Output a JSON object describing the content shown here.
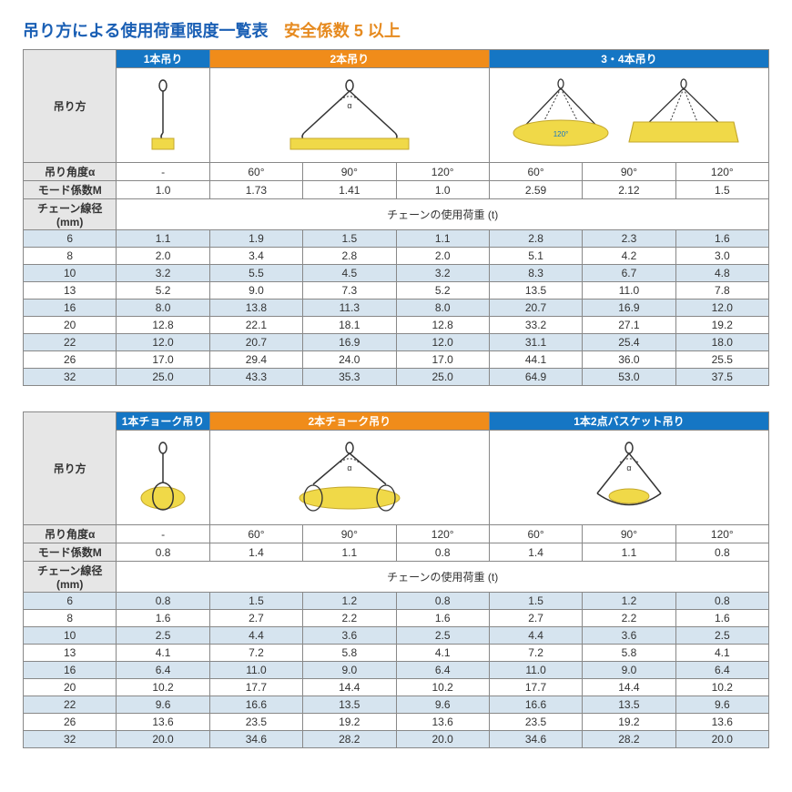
{
  "title_main": "吊り方による使用荷重限度一覧表",
  "title_sub": "安全係数 5 以上",
  "colors": {
    "blue": "#1576c4",
    "orange": "#f08c1a",
    "grey": "#e6e6e6",
    "altrow": "#d6e4ef",
    "title_blue": "#1a5fb4",
    "title_orange": "#e68a1f",
    "border": "#888888"
  },
  "labels": {
    "sling_method": "吊り方",
    "angle": "吊り角度α",
    "mode": "モード係数M",
    "chain_dia": "チェーン線径 (mm)",
    "chain_load": "チェーンの使用荷重 (t)"
  },
  "table1": {
    "headers": [
      {
        "text": "1本吊り",
        "color": "blue",
        "span": 1
      },
      {
        "text": "2本吊り",
        "color": "orange",
        "span": 3
      },
      {
        "text": "3・4本吊り",
        "color": "blue",
        "span": 3
      }
    ],
    "angles": [
      "-",
      "60°",
      "90°",
      "120°",
      "60°",
      "90°",
      "120°"
    ],
    "modes": [
      "1.0",
      "1.73",
      "1.41",
      "1.0",
      "2.59",
      "2.12",
      "1.5"
    ],
    "rows": [
      {
        "dia": "6",
        "v": [
          "1.1",
          "1.9",
          "1.5",
          "1.1",
          "2.8",
          "2.3",
          "1.6"
        ],
        "alt": true
      },
      {
        "dia": "8",
        "v": [
          "2.0",
          "3.4",
          "2.8",
          "2.0",
          "5.1",
          "4.2",
          "3.0"
        ],
        "alt": false
      },
      {
        "dia": "10",
        "v": [
          "3.2",
          "5.5",
          "4.5",
          "3.2",
          "8.3",
          "6.7",
          "4.8"
        ],
        "alt": true
      },
      {
        "dia": "13",
        "v": [
          "5.2",
          "9.0",
          "7.3",
          "5.2",
          "13.5",
          "11.0",
          "7.8"
        ],
        "alt": false
      },
      {
        "dia": "16",
        "v": [
          "8.0",
          "13.8",
          "11.3",
          "8.0",
          "20.7",
          "16.9",
          "12.0"
        ],
        "alt": true
      },
      {
        "dia": "20",
        "v": [
          "12.8",
          "22.1",
          "18.1",
          "12.8",
          "33.2",
          "27.1",
          "19.2"
        ],
        "alt": false
      },
      {
        "dia": "22",
        "v": [
          "12.0",
          "20.7",
          "16.9",
          "12.0",
          "31.1",
          "25.4",
          "18.0"
        ],
        "alt": true
      },
      {
        "dia": "26",
        "v": [
          "17.0",
          "29.4",
          "24.0",
          "17.0",
          "44.1",
          "36.0",
          "25.5"
        ],
        "alt": false
      },
      {
        "dia": "32",
        "v": [
          "25.0",
          "43.3",
          "35.3",
          "25.0",
          "64.9",
          "53.0",
          "37.5"
        ],
        "alt": true
      }
    ]
  },
  "table2": {
    "headers": [
      {
        "text": "1本チョーク吊り",
        "color": "blue",
        "span": 1
      },
      {
        "text": "2本チョーク吊り",
        "color": "orange",
        "span": 3
      },
      {
        "text": "1本2点バスケット吊り",
        "color": "blue",
        "span": 3
      }
    ],
    "angles": [
      "-",
      "60°",
      "90°",
      "120°",
      "60°",
      "90°",
      "120°"
    ],
    "modes": [
      "0.8",
      "1.4",
      "1.1",
      "0.8",
      "1.4",
      "1.1",
      "0.8"
    ],
    "rows": [
      {
        "dia": "6",
        "v": [
          "0.8",
          "1.5",
          "1.2",
          "0.8",
          "1.5",
          "1.2",
          "0.8"
        ],
        "alt": true
      },
      {
        "dia": "8",
        "v": [
          "1.6",
          "2.7",
          "2.2",
          "1.6",
          "2.7",
          "2.2",
          "1.6"
        ],
        "alt": false
      },
      {
        "dia": "10",
        "v": [
          "2.5",
          "4.4",
          "3.6",
          "2.5",
          "4.4",
          "3.6",
          "2.5"
        ],
        "alt": true
      },
      {
        "dia": "13",
        "v": [
          "4.1",
          "7.2",
          "5.8",
          "4.1",
          "7.2",
          "5.8",
          "4.1"
        ],
        "alt": false
      },
      {
        "dia": "16",
        "v": [
          "6.4",
          "11.0",
          "9.0",
          "6.4",
          "11.0",
          "9.0",
          "6.4"
        ],
        "alt": true
      },
      {
        "dia": "20",
        "v": [
          "10.2",
          "17.7",
          "14.4",
          "10.2",
          "17.7",
          "14.4",
          "10.2"
        ],
        "alt": false
      },
      {
        "dia": "22",
        "v": [
          "9.6",
          "16.6",
          "13.5",
          "9.6",
          "16.6",
          "13.5",
          "9.6"
        ],
        "alt": true
      },
      {
        "dia": "26",
        "v": [
          "13.6",
          "23.5",
          "19.2",
          "13.6",
          "23.5",
          "19.2",
          "13.6"
        ],
        "alt": false
      },
      {
        "dia": "32",
        "v": [
          "20.0",
          "34.6",
          "28.2",
          "20.0",
          "34.6",
          "28.2",
          "20.0"
        ],
        "alt": true
      }
    ]
  }
}
